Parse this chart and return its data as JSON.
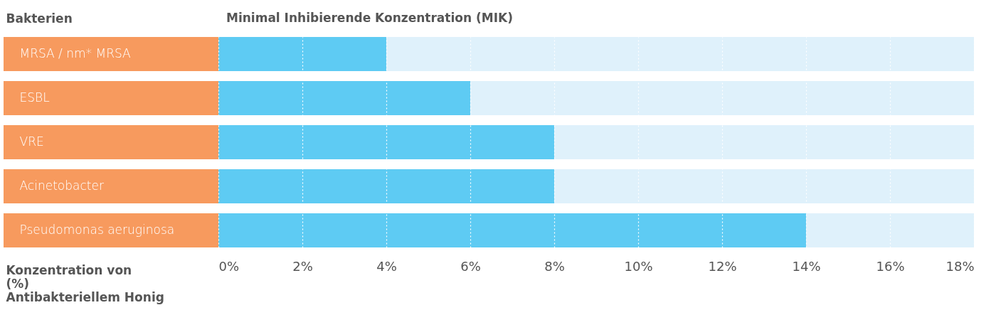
{
  "chart_data": {
    "type": "bar",
    "orientation": "horizontal",
    "title": "Minimal Inhibierende Konzentration (MIK)",
    "ylabel": "Bakterien",
    "xlabel": "Konzentration von\n(%)\nAntibakteriellem Honig",
    "categories": [
      "MRSA / nm* MRSA",
      "ESBL",
      "VRE",
      "Acinetobacter",
      "Pseudomonas aeruginosa"
    ],
    "values": [
      4,
      6,
      8,
      8,
      14
    ],
    "color": "#5ecbf3",
    "xlim": [
      0,
      18
    ],
    "xticks": [
      {
        "value": 0,
        "label": "0%"
      },
      {
        "value": 2,
        "label": "2%"
      },
      {
        "value": 4,
        "label": "4%"
      },
      {
        "value": 6,
        "label": "6%"
      },
      {
        "value": 8,
        "label": "8%"
      },
      {
        "value": 10,
        "label": "10%"
      },
      {
        "value": 12,
        "label": "12%"
      },
      {
        "value": 14,
        "label": "14%"
      },
      {
        "value": 16,
        "label": "16%"
      },
      {
        "value": 18,
        "label": "18%"
      }
    ],
    "grid": "x"
  }
}
